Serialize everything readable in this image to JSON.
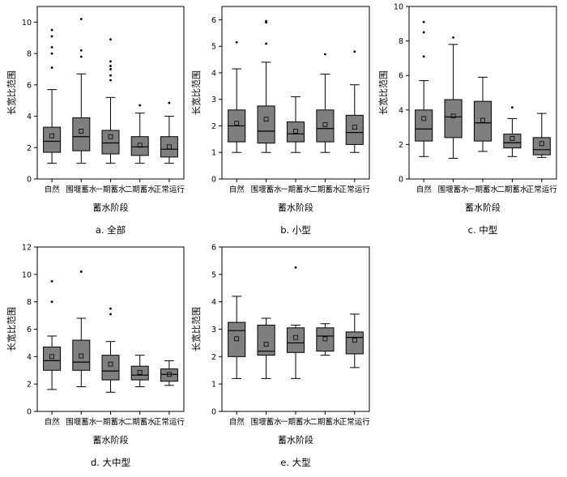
{
  "figure": {
    "box_fill": "#7f7f7f",
    "stroke": "#000000"
  },
  "chart_data": [
    {
      "type": "box",
      "panel": "a",
      "caption": "a.  全部",
      "xlabel": "蓄水阶段",
      "ylabel": "长宽比范围",
      "ylim": [
        0,
        11
      ],
      "yticks": [
        0,
        2,
        4,
        6,
        8,
        10
      ],
      "categories": [
        "自然",
        "围堰蓄水",
        "一期蓄水",
        "二期蓄水",
        "正常运行"
      ],
      "boxes": [
        {
          "whisker_low": 1.0,
          "q1": 1.7,
          "median": 2.4,
          "q3": 3.3,
          "whisker_high": 5.7,
          "mean": 2.75,
          "outliers": [
            7.1,
            8.0,
            8.4,
            9.1,
            9.5
          ]
        },
        {
          "whisker_low": 1.0,
          "q1": 1.8,
          "median": 2.7,
          "q3": 3.9,
          "whisker_high": 6.7,
          "mean": 3.05,
          "outliers": [
            7.8,
            8.2,
            10.2
          ]
        },
        {
          "whisker_low": 1.0,
          "q1": 1.6,
          "median": 2.3,
          "q3": 3.1,
          "whisker_high": 5.2,
          "mean": 2.7,
          "outliers": [
            6.3,
            6.6,
            7.0,
            7.2,
            7.5,
            8.9
          ]
        },
        {
          "whisker_low": 1.0,
          "q1": 1.5,
          "median": 2.05,
          "q3": 2.7,
          "whisker_high": 4.2,
          "mean": 2.15,
          "outliers": [
            4.7
          ]
        },
        {
          "whisker_low": 1.0,
          "q1": 1.4,
          "median": 1.9,
          "q3": 2.7,
          "whisker_high": 4.0,
          "mean": 2.05,
          "outliers": [
            4.85
          ]
        }
      ]
    },
    {
      "type": "box",
      "panel": "b",
      "caption": "b.  小型",
      "xlabel": "蓄水阶段",
      "ylabel": "长宽比范围",
      "ylim": [
        0,
        6.5
      ],
      "yticks": [
        0,
        1,
        2,
        3,
        4,
        5,
        6
      ],
      "categories": [
        "自然",
        "围堰蓄水",
        "一期蓄水",
        "二期蓄水",
        "正常运行"
      ],
      "boxes": [
        {
          "whisker_low": 1.0,
          "q1": 1.4,
          "median": 2.0,
          "q3": 2.6,
          "whisker_high": 4.15,
          "mean": 2.1,
          "outliers": [
            5.15
          ]
        },
        {
          "whisker_low": 1.0,
          "q1": 1.35,
          "median": 1.8,
          "q3": 2.75,
          "whisker_high": 4.4,
          "mean": 2.25,
          "outliers": [
            5.1,
            5.9,
            5.95
          ]
        },
        {
          "whisker_low": 1.0,
          "q1": 1.4,
          "median": 1.7,
          "q3": 2.15,
          "whisker_high": 3.1,
          "mean": 1.8,
          "outliers": []
        },
        {
          "whisker_low": 1.0,
          "q1": 1.4,
          "median": 1.9,
          "q3": 2.6,
          "whisker_high": 3.95,
          "mean": 2.05,
          "outliers": [
            4.7
          ]
        },
        {
          "whisker_low": 1.0,
          "q1": 1.3,
          "median": 1.75,
          "q3": 2.4,
          "whisker_high": 3.55,
          "mean": 1.95,
          "outliers": [
            4.8
          ]
        }
      ]
    },
    {
      "type": "box",
      "panel": "c",
      "caption": "c.  中型",
      "xlabel": "蓄水阶段",
      "ylabel": "长宽比范围",
      "ylim": [
        0,
        10
      ],
      "yticks": [
        0,
        2,
        4,
        6,
        8,
        10
      ],
      "categories": [
        "自然",
        "围堰蓄水",
        "一期蓄水",
        "二期蓄水",
        "正常运行"
      ],
      "boxes": [
        {
          "whisker_low": 1.3,
          "q1": 2.2,
          "median": 2.9,
          "q3": 4.0,
          "whisker_high": 5.7,
          "mean": 3.5,
          "outliers": [
            7.1,
            8.5,
            9.1
          ]
        },
        {
          "whisker_low": 1.2,
          "q1": 2.4,
          "median": 3.6,
          "q3": 4.6,
          "whisker_high": 7.8,
          "mean": 3.65,
          "outliers": [
            8.2
          ]
        },
        {
          "whisker_low": 1.6,
          "q1": 2.2,
          "median": 3.25,
          "q3": 4.5,
          "whisker_high": 5.9,
          "mean": 3.4,
          "outliers": []
        },
        {
          "whisker_low": 1.3,
          "q1": 1.8,
          "median": 2.1,
          "q3": 2.6,
          "whisker_high": 3.5,
          "mean": 2.35,
          "outliers": [
            4.15
          ]
        },
        {
          "whisker_low": 1.25,
          "q1": 1.4,
          "median": 1.7,
          "q3": 2.4,
          "whisker_high": 3.8,
          "mean": 2.05,
          "outliers": []
        }
      ]
    },
    {
      "type": "box",
      "panel": "d",
      "caption": "d.  大中型",
      "xlabel": "蓄水阶段",
      "ylabel": "长宽比范围",
      "ylim": [
        0,
        12
      ],
      "yticks": [
        0,
        2,
        4,
        6,
        8,
        10,
        12
      ],
      "categories": [
        "自然",
        "围堰蓄水",
        "一期蓄水",
        "二期蓄水",
        "正常运行"
      ],
      "boxes": [
        {
          "whisker_low": 1.6,
          "q1": 3.0,
          "median": 3.7,
          "q3": 4.7,
          "whisker_high": 5.5,
          "mean": 4.0,
          "outliers": [
            8.0,
            9.5
          ]
        },
        {
          "whisker_low": 1.8,
          "q1": 3.0,
          "median": 3.6,
          "q3": 5.2,
          "whisker_high": 6.8,
          "mean": 4.05,
          "outliers": [
            10.2
          ]
        },
        {
          "whisker_low": 1.4,
          "q1": 2.3,
          "median": 2.95,
          "q3": 4.1,
          "whisker_high": 5.1,
          "mean": 3.45,
          "outliers": [
            7.1,
            7.5
          ]
        },
        {
          "whisker_low": 1.8,
          "q1": 2.3,
          "median": 2.65,
          "q3": 3.3,
          "whisker_high": 4.1,
          "mean": 2.85,
          "outliers": []
        },
        {
          "whisker_low": 1.9,
          "q1": 2.2,
          "median": 2.7,
          "q3": 3.1,
          "whisker_high": 3.7,
          "mean": 2.7,
          "outliers": []
        }
      ]
    },
    {
      "type": "box",
      "panel": "e",
      "caption": "e.  大型",
      "xlabel": "蓄水阶段",
      "ylabel": "长宽比范围",
      "ylim": [
        0,
        6
      ],
      "yticks": [
        0,
        1,
        2,
        3,
        4,
        5,
        6
      ],
      "categories": [
        "自然",
        "围堰蓄水",
        "一期蓄水",
        "二期蓄水",
        "正常运行"
      ],
      "boxes": [
        {
          "whisker_low": 1.2,
          "q1": 2.0,
          "median": 2.95,
          "q3": 3.25,
          "whisker_high": 4.2,
          "mean": 2.65,
          "outliers": []
        },
        {
          "whisker_low": 1.2,
          "q1": 2.05,
          "median": 2.2,
          "q3": 3.15,
          "whisker_high": 3.4,
          "mean": 2.45,
          "outliers": []
        },
        {
          "whisker_low": 1.2,
          "q1": 2.15,
          "median": 2.5,
          "q3": 3.05,
          "whisker_high": 3.15,
          "mean": 2.7,
          "outliers": [
            5.25
          ]
        },
        {
          "whisker_low": 2.05,
          "q1": 2.2,
          "median": 2.75,
          "q3": 3.05,
          "whisker_high": 3.2,
          "mean": 2.65,
          "outliers": []
        },
        {
          "whisker_low": 1.6,
          "q1": 2.1,
          "median": 2.7,
          "q3": 2.9,
          "whisker_high": 3.55,
          "mean": 2.6,
          "outliers": []
        }
      ]
    }
  ]
}
